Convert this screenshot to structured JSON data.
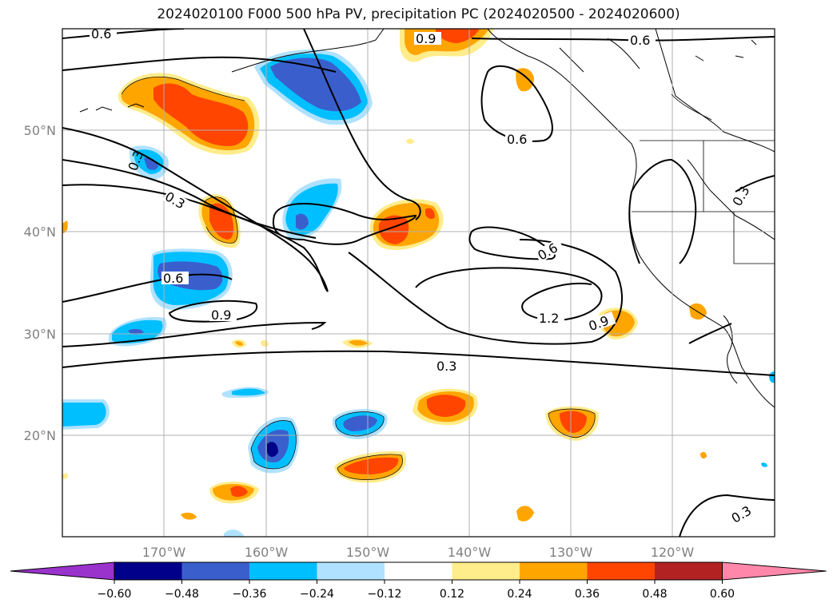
{
  "title": "2024020100 F000 500 hPa PV, precipitation PC (2024020500 - 2024020600)",
  "axes": {
    "lon_ticks": [
      "170°W",
      "160°W",
      "150°W",
      "140°W",
      "130°W",
      "120°W"
    ],
    "lat_ticks": [
      "50°N",
      "40°N",
      "30°N",
      "20°N"
    ]
  },
  "contour_labels": [
    "0.6",
    "0.9",
    "0.6",
    "0.6",
    "0.3",
    "0.3",
    "0.3",
    "0.6",
    "0.6",
    "0.9",
    "1.2",
    "0.9",
    "0.3",
    "0.3"
  ],
  "colorbar": {
    "ticks": [
      "−0.60",
      "−0.48",
      "−0.36",
      "−0.24",
      "−0.12",
      "0.12",
      "0.24",
      "0.36",
      "0.48",
      "0.60"
    ],
    "colors": [
      "#9933cc",
      "#00008b",
      "#3a5fcd",
      "#00bfff",
      "#b0e2ff",
      "#ffffff",
      "#ffec8b",
      "#ffa500",
      "#ff4500",
      "#b22222",
      "#ff88aa"
    ]
  },
  "colors": {
    "light_blue": "#b0e2ff",
    "sky_blue": "#00bfff",
    "royal_blue": "#3a5fcd",
    "navy": "#00008b",
    "light_yellow": "#ffec8b",
    "orange": "#ffa500",
    "red_orange": "#ff4500"
  }
}
